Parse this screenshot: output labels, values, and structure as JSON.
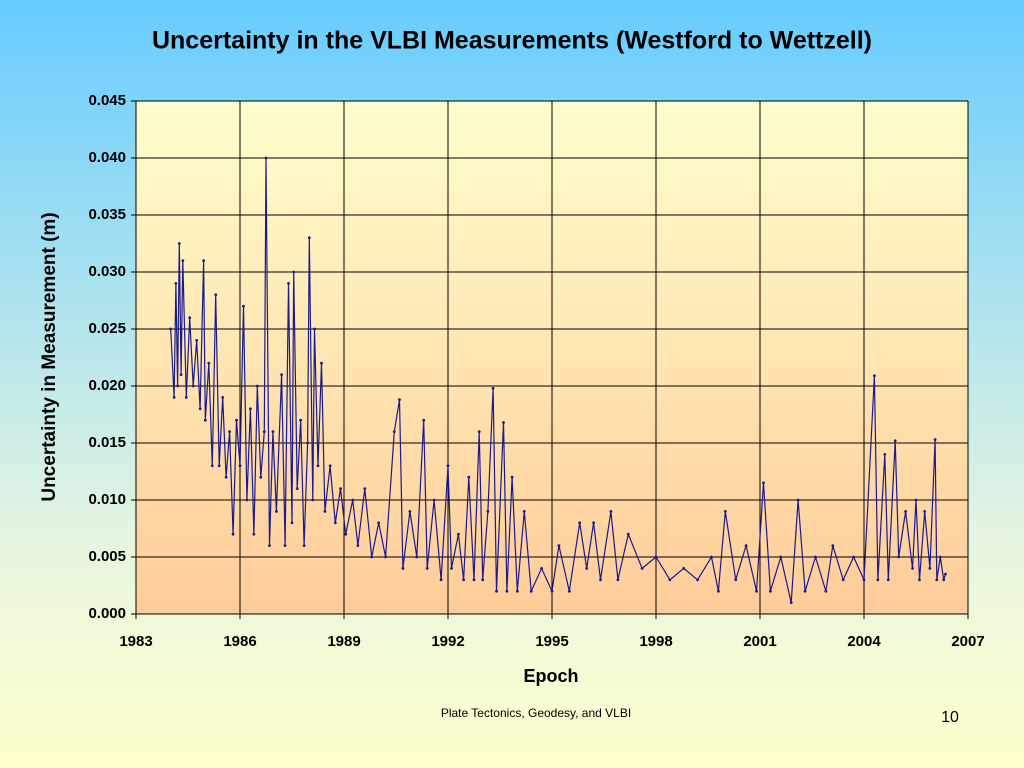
{
  "chart_data": {
    "type": "line",
    "title": "Uncertainty in the VLBI Measurements (Westford to Wettzell)",
    "x_label": "Epoch",
    "y_label": "Uncertainty in Measurement (m)",
    "xlim": [
      1983,
      2007
    ],
    "xticks": [
      1983,
      1986,
      1989,
      1992,
      1995,
      1998,
      2001,
      2004,
      2007
    ],
    "ylim": [
      0,
      0.045
    ],
    "yticks": [
      {
        "value": 0,
        "label": "0.000"
      },
      0.005,
      {
        "value": 0.01,
        "label": "0.010"
      },
      0.015,
      {
        "value": 0.02,
        "label": "0.020"
      },
      0.025,
      {
        "value": 0.03,
        "label": "0.030"
      },
      0.035,
      {
        "value": 0.04,
        "label": "0.040"
      },
      0.045
    ],
    "grid": true,
    "series": [
      {
        "color": "#1a1a8c",
        "x": [
          1984.0,
          1984.1,
          1984.15,
          1984.2,
          1984.25,
          1984.3,
          1984.35,
          1984.45,
          1984.55,
          1984.65,
          1984.75,
          1984.85,
          1984.95,
          1985.0,
          1985.1,
          1985.2,
          1985.3,
          1985.4,
          1985.5,
          1985.6,
          1985.7,
          1985.8,
          1985.9,
          1986.0,
          1986.1,
          1986.2,
          1986.3,
          1986.4,
          1986.5,
          1986.6,
          1986.7,
          1986.75,
          1986.85,
          1986.95,
          1987.05,
          1987.2,
          1987.3,
          1987.4,
          1987.5,
          1987.55,
          1987.65,
          1987.75,
          1987.85,
          1987.95,
          1988.0,
          1988.1,
          1988.15,
          1988.25,
          1988.35,
          1988.45,
          1988.6,
          1988.75,
          1988.9,
          1989.05,
          1989.25,
          1989.4,
          1989.6,
          1989.8,
          1990.0,
          1990.2,
          1990.45,
          1990.6,
          1990.7,
          1990.9,
          1991.1,
          1991.3,
          1991.4,
          1991.6,
          1991.8,
          1992.0,
          1992.1,
          1992.3,
          1992.45,
          1992.6,
          1992.75,
          1992.9,
          1993.0,
          1993.15,
          1993.3,
          1993.4,
          1993.6,
          1993.7,
          1993.85,
          1994.0,
          1994.2,
          1994.4,
          1994.7,
          1995.0,
          1995.2,
          1995.5,
          1995.8,
          1996.0,
          1996.2,
          1996.4,
          1996.7,
          1996.9,
          1997.2,
          1997.6,
          1998.0,
          1998.4,
          1998.8,
          1999.2,
          1999.6,
          1999.8,
          2000.0,
          2000.3,
          2000.6,
          2000.9,
          2001.1,
          2001.3,
          2001.6,
          2001.9,
          2002.1,
          2002.3,
          2002.6,
          2002.9,
          2003.1,
          2003.4,
          2003.7,
          2004.0,
          2004.3,
          2004.4,
          2004.6,
          2004.7,
          2004.9,
          2005.0,
          2005.2,
          2005.4,
          2005.5,
          2005.6,
          2005.75,
          2005.9,
          2006.05,
          2006.1,
          2006.2,
          2006.3,
          2006.35
        ],
        "values": [
          0.025,
          0.019,
          0.029,
          0.02,
          0.0325,
          0.021,
          0.031,
          0.019,
          0.026,
          0.02,
          0.024,
          0.018,
          0.031,
          0.017,
          0.022,
          0.013,
          0.028,
          0.013,
          0.019,
          0.012,
          0.016,
          0.007,
          0.017,
          0.013,
          0.027,
          0.01,
          0.018,
          0.007,
          0.02,
          0.012,
          0.016,
          0.04,
          0.006,
          0.016,
          0.009,
          0.021,
          0.006,
          0.029,
          0.008,
          0.03,
          0.011,
          0.017,
          0.006,
          0.015,
          0.033,
          0.01,
          0.025,
          0.013,
          0.022,
          0.009,
          0.013,
          0.008,
          0.011,
          0.007,
          0.01,
          0.006,
          0.011,
          0.005,
          0.008,
          0.005,
          0.016,
          0.0188,
          0.004,
          0.009,
          0.005,
          0.017,
          0.004,
          0.01,
          0.003,
          0.013,
          0.004,
          0.007,
          0.003,
          0.012,
          0.003,
          0.016,
          0.003,
          0.009,
          0.0198,
          0.002,
          0.0168,
          0.002,
          0.012,
          0.002,
          0.009,
          0.002,
          0.004,
          0.002,
          0.006,
          0.002,
          0.008,
          0.004,
          0.008,
          0.003,
          0.009,
          0.003,
          0.007,
          0.004,
          0.005,
          0.003,
          0.004,
          0.003,
          0.005,
          0.002,
          0.009,
          0.003,
          0.006,
          0.002,
          0.0115,
          0.002,
          0.005,
          0.001,
          0.01,
          0.002,
          0.005,
          0.002,
          0.006,
          0.003,
          0.005,
          0.003,
          0.0209,
          0.003,
          0.014,
          0.003,
          0.0152,
          0.005,
          0.009,
          0.004,
          0.01,
          0.003,
          0.009,
          0.004,
          0.0153,
          0.003,
          0.005,
          0.003,
          0.0035
        ]
      }
    ]
  },
  "footer": "Plate Tectonics, Geodesy, and VLBI",
  "page_number": "10"
}
